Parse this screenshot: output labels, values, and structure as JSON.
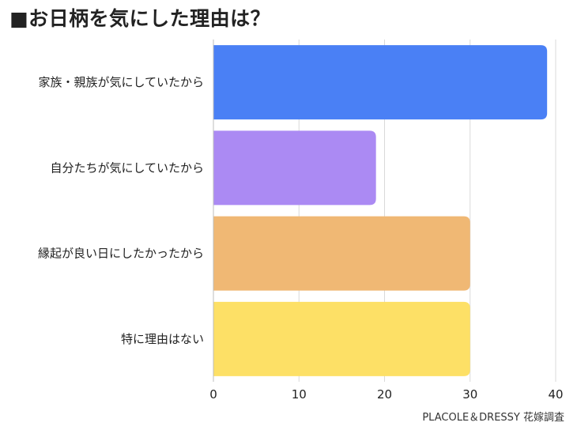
{
  "title": "■お日柄を気にした理由は？",
  "source": "PLACOLE＆DRESSY 花嫁調査",
  "chart_data": {
    "type": "bar",
    "orientation": "horizontal",
    "title": "■お日柄を気にした理由は？",
    "categories": [
      "家族・親族が気にしていたから",
      "自分たちが気にしていたから",
      "縁起が良い日にしたかったから",
      "特に理由はない"
    ],
    "values": [
      39,
      19,
      30,
      30
    ],
    "colors": [
      "#4a80f5",
      "#ab8af3",
      "#f0b874",
      "#fde066"
    ],
    "xlim": [
      0,
      40
    ],
    "xticks": [
      0,
      10,
      20,
      30,
      40
    ],
    "grid": true,
    "legend": "none"
  }
}
